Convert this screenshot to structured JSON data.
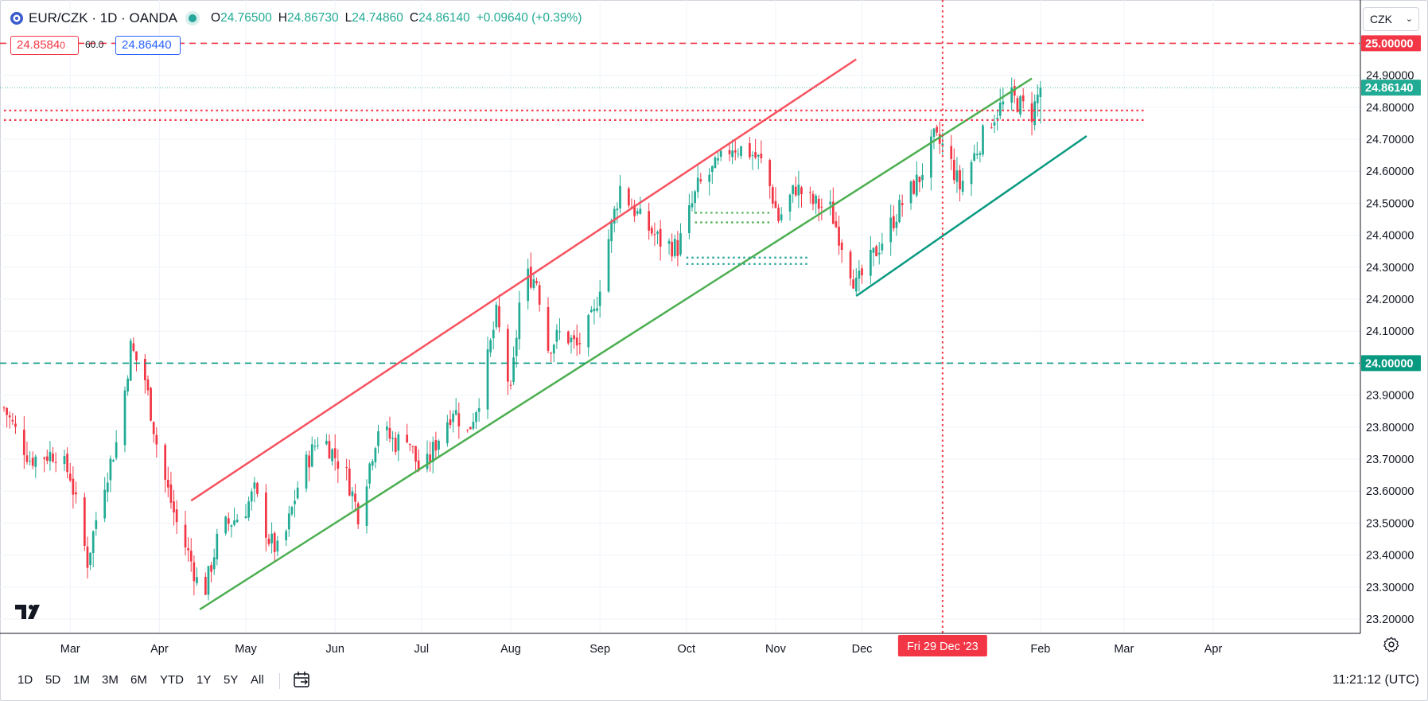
{
  "header": {
    "symbol": "EUR/CZK · 1D · OANDA",
    "ohlc": {
      "o_label": "O",
      "o": "24.76500",
      "h_label": "H",
      "h": "24.86730",
      "l_label": "L",
      "l": "24.74860",
      "c_label": "C",
      "c": "24.86140",
      "change": "+0.09640 (+0.39%)"
    }
  },
  "trade": {
    "sell_main": "24.8584",
    "sell_sup": "0",
    "spread": "60.0",
    "buy_main": "24.8644",
    "buy_sup": "0"
  },
  "currency_select": {
    "value": "CZK"
  },
  "ranges": [
    "1D",
    "5D",
    "1M",
    "3M",
    "6M",
    "YTD",
    "1Y",
    "5Y",
    "All"
  ],
  "clock": "11:21:12 (UTC)",
  "crosshair_date": "Fri 29 Dec '23",
  "colors": {
    "up": "#22ab94",
    "down": "#f23645",
    "resistance": "#f7525f",
    "support_green": "#4caf50",
    "support_teal": "#089981",
    "grid": "#f0f3fa"
  },
  "icons": {
    "logo": "oanda-logo-icon",
    "calendar": "date-range-icon",
    "settings": "gear-icon",
    "brand": "tradingview-logo-icon"
  },
  "chart_data": {
    "type": "candlestick",
    "symbol": "EUR/CZK",
    "interval": "1D",
    "ylim": [
      23.15,
      25.05
    ],
    "y_ticks": [
      "25.00000",
      "24.90000",
      "24.80000",
      "24.70000",
      "24.60000",
      "24.50000",
      "24.40000",
      "24.30000",
      "24.20000",
      "24.10000",
      "24.00000",
      "23.90000",
      "23.80000",
      "23.70000",
      "23.60000",
      "23.50000",
      "23.40000",
      "23.30000",
      "23.20000"
    ],
    "x_ticks": [
      {
        "label": "Mar",
        "date": "2023-03-01"
      },
      {
        "label": "Apr",
        "date": "2023-04-01"
      },
      {
        "label": "May",
        "date": "2023-05-01"
      },
      {
        "label": "Jun",
        "date": "2023-06-01"
      },
      {
        "label": "Jul",
        "date": "2023-07-01"
      },
      {
        "label": "Aug",
        "date": "2023-08-01"
      },
      {
        "label": "Sep",
        "date": "2023-09-01"
      },
      {
        "label": "Oct",
        "date": "2023-10-01"
      },
      {
        "label": "Nov",
        "date": "2023-11-01"
      },
      {
        "label": "Dec",
        "date": "2023-12-01"
      },
      {
        "label": "Feb",
        "date": "2024-02-01"
      },
      {
        "label": "Mar",
        "date": "2024-03-01"
      },
      {
        "label": "Apr",
        "date": "2024-04-01"
      }
    ],
    "x_range": [
      "2023-02-06",
      "2024-04-30"
    ],
    "last_price": 24.8614,
    "price_labels": [
      {
        "text": "25.00000",
        "value": 25.0,
        "color": "#f23645"
      },
      {
        "text": "24.86140",
        "value": 24.8614,
        "color": "#22ab94"
      },
      {
        "text": "24.00000",
        "value": 24.0,
        "color": "#089981"
      }
    ],
    "anchors": [
      [
        "2023-02-06",
        23.86
      ],
      [
        "2023-02-15",
        23.7
      ],
      [
        "2023-02-24",
        23.72
      ],
      [
        "2023-03-01",
        23.65
      ],
      [
        "2023-03-07",
        23.38
      ],
      [
        "2023-03-12",
        23.6
      ],
      [
        "2023-03-18",
        23.78
      ],
      [
        "2023-03-22",
        24.05
      ],
      [
        "2023-03-27",
        23.95
      ],
      [
        "2023-04-01",
        23.7
      ],
      [
        "2023-04-07",
        23.5
      ],
      [
        "2023-04-12",
        23.38
      ],
      [
        "2023-04-16",
        23.26
      ],
      [
        "2023-04-22",
        23.48
      ],
      [
        "2023-04-30",
        23.53
      ],
      [
        "2023-05-04",
        23.6
      ],
      [
        "2023-05-09",
        23.45
      ],
      [
        "2023-05-13",
        23.4
      ],
      [
        "2023-05-20",
        23.65
      ],
      [
        "2023-05-27",
        23.78
      ],
      [
        "2023-06-05",
        23.65
      ],
      [
        "2023-06-09",
        23.53
      ],
      [
        "2023-06-16",
        23.8
      ],
      [
        "2023-06-22",
        23.75
      ],
      [
        "2023-06-26",
        23.78
      ],
      [
        "2023-07-01",
        23.64
      ],
      [
        "2023-07-06",
        23.75
      ],
      [
        "2023-07-12",
        23.86
      ],
      [
        "2023-07-17",
        23.78
      ],
      [
        "2023-07-22",
        23.92
      ],
      [
        "2023-07-27",
        24.15
      ],
      [
        "2023-08-01",
        23.9
      ],
      [
        "2023-08-05",
        24.28
      ],
      [
        "2023-08-10",
        24.26
      ],
      [
        "2023-08-14",
        24.05
      ],
      [
        "2023-08-19",
        24.1
      ],
      [
        "2023-08-24",
        24.05
      ],
      [
        "2023-08-30",
        24.15
      ],
      [
        "2023-09-03",
        24.35
      ],
      [
        "2023-09-08",
        24.55
      ],
      [
        "2023-09-15",
        24.45
      ],
      [
        "2023-09-22",
        24.38
      ],
      [
        "2023-09-28",
        24.36
      ],
      [
        "2023-10-05",
        24.55
      ],
      [
        "2023-10-12",
        24.62
      ],
      [
        "2023-10-17",
        24.68
      ],
      [
        "2023-10-23",
        24.66
      ],
      [
        "2023-10-28",
        24.62
      ],
      [
        "2023-11-02",
        24.45
      ],
      [
        "2023-11-08",
        24.55
      ],
      [
        "2023-11-14",
        24.5
      ],
      [
        "2023-11-20",
        24.48
      ],
      [
        "2023-11-25",
        24.35
      ],
      [
        "2023-11-29",
        24.24
      ],
      [
        "2023-12-04",
        24.32
      ],
      [
        "2023-12-09",
        24.4
      ],
      [
        "2023-12-15",
        24.5
      ],
      [
        "2023-12-21",
        24.58
      ],
      [
        "2023-12-26",
        24.7
      ],
      [
        "2023-12-30",
        24.67
      ],
      [
        "2024-01-04",
        24.55
      ],
      [
        "2024-01-09",
        24.65
      ],
      [
        "2024-01-14",
        24.75
      ],
      [
        "2024-01-18",
        24.8
      ],
      [
        "2024-01-22",
        24.83
      ],
      [
        "2024-01-26",
        24.8
      ],
      [
        "2024-01-29",
        24.78
      ],
      [
        "2024-02-01",
        24.8614
      ]
    ],
    "drawings": [
      {
        "kind": "trendline",
        "name": "resistance-trendline",
        "color": "#f7525f",
        "p1": [
          "2023-04-12",
          23.57
        ],
        "p2": [
          "2023-11-29",
          24.95
        ]
      },
      {
        "kind": "trendline",
        "name": "support-trendline",
        "color": "#4caf50",
        "p1": [
          "2023-04-15",
          23.23
        ],
        "p2": [
          "2024-01-29",
          24.89
        ]
      },
      {
        "kind": "trendline",
        "name": "lower-channel-trendline",
        "color": "#089981",
        "p1": [
          "2023-11-29",
          24.21
        ],
        "p2": [
          "2024-02-17",
          24.71
        ]
      },
      {
        "kind": "hline",
        "name": "level-25",
        "color": "#f23645",
        "value": 25.0,
        "dash": "dashed"
      },
      {
        "kind": "hline",
        "name": "level-24",
        "color": "#089981",
        "value": 24.0,
        "dash": "dashed"
      },
      {
        "kind": "hray",
        "name": "zone-top",
        "color": "#f23645",
        "value": 24.79,
        "from": "2023-02-06",
        "to": "2024-03-08",
        "dash": "dotted"
      },
      {
        "kind": "hray",
        "name": "zone-bottom",
        "color": "#f23645",
        "value": 24.76,
        "from": "2023-02-06",
        "to": "2024-03-08",
        "dash": "dotted"
      },
      {
        "kind": "segment",
        "name": "green-dots-1",
        "color": "#4caf50",
        "value": 24.47,
        "from": "2023-10-04",
        "to": "2023-10-31"
      },
      {
        "kind": "segment",
        "name": "green-dots-2",
        "color": "#4caf50",
        "value": 24.44,
        "from": "2023-10-04",
        "to": "2023-10-31"
      },
      {
        "kind": "segment",
        "name": "teal-dots-1",
        "color": "#26a69a",
        "value": 24.33,
        "from": "2023-10-01",
        "to": "2023-11-12"
      },
      {
        "kind": "segment",
        "name": "teal-dots-2",
        "color": "#26a69a",
        "value": 24.31,
        "from": "2023-10-01",
        "to": "2023-11-12"
      },
      {
        "kind": "vline",
        "name": "crosshair-vertical",
        "color": "#f23645",
        "date": "2023-12-29"
      }
    ]
  }
}
